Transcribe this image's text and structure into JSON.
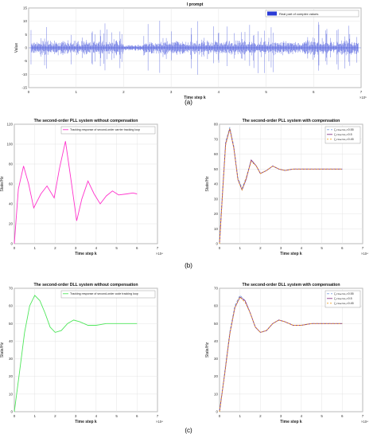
{
  "captions": {
    "a": "(a)",
    "b": "(b)",
    "c": "(c)"
  },
  "colors": {
    "noise": "#2a3bd6",
    "pll_nc": "#ff33cc",
    "dll_nc": "#4ee65a",
    "comp_a": "#7aa0e0",
    "comp_b": "#8a3a8a",
    "comp_c": "#f0a020",
    "comp_d": "#d04040"
  },
  "chart_data": [
    {
      "id": "a",
      "type": "line",
      "title": "l prompt",
      "xlabel": "Time step k",
      "ylabel": "Value",
      "x_exponent": "×10⁵",
      "xlim": [
        0,
        7
      ],
      "ylim": [
        -15,
        15
      ],
      "xticks": [
        "0",
        "1",
        "2",
        "3",
        "4",
        "5",
        "6",
        "7"
      ],
      "yticks": [
        "-15",
        "-10",
        "-5",
        "0",
        "5",
        "10",
        "15"
      ],
      "series": [
        {
          "name": "Real part of complex values",
          "baseline": 0,
          "typical_range": [
            -3,
            3
          ],
          "peak_range": [
            -11,
            11
          ],
          "quiet_segment_x": [
            2.0,
            2.4
          ]
        }
      ],
      "legend": "top-right",
      "grid": true
    },
    {
      "id": "b1",
      "type": "line",
      "title": "The second-order PLL system without compensation",
      "xlabel": "Time step k",
      "ylabel": "State/Hz",
      "x_exponent": "×10⁴",
      "xlim": [
        0,
        7
      ],
      "ylim": [
        0,
        120
      ],
      "xticks": [
        "0",
        "1",
        "2",
        "3",
        "4",
        "5",
        "6",
        "7"
      ],
      "yticks": [
        "0",
        "20",
        "40",
        "60",
        "80",
        "100",
        "120"
      ],
      "series": [
        {
          "name": "Tracking response of second-order carrier tracking loop",
          "x": [
            0,
            0.2,
            0.45,
            0.7,
            0.95,
            1.3,
            1.6,
            1.95,
            2.2,
            2.5,
            2.8,
            3.05,
            3.3,
            3.6,
            3.9,
            4.2,
            4.5,
            4.8,
            5.1,
            5.5,
            5.8,
            6.0
          ],
          "y": [
            0,
            55,
            78,
            60,
            36,
            50,
            58,
            46,
            75,
            103,
            60,
            23,
            45,
            63,
            50,
            40,
            48,
            53,
            49,
            50,
            51,
            50
          ]
        }
      ],
      "legend": "top-right",
      "grid": true
    },
    {
      "id": "b2",
      "type": "line",
      "title": "The second-order PLL system with compensation",
      "xlabel": "Time step k",
      "ylabel": "State/Hz",
      "x_exponent": "×10⁴",
      "xlim": [
        0,
        7
      ],
      "ylim": [
        0,
        80
      ],
      "xticks": [
        "0",
        "1",
        "2",
        "3",
        "4",
        "5",
        "6",
        "7"
      ],
      "yticks": [
        "0",
        "10",
        "20",
        "30",
        "40",
        "50",
        "60",
        "70",
        "80"
      ],
      "series": [
        {
          "name": "ζ₁=ωₙ=ω₀=0.55",
          "x": [
            0,
            0.15,
            0.3,
            0.5,
            0.7,
            0.9,
            1.1,
            1.3,
            1.55,
            1.8,
            2.0,
            2.3,
            2.6,
            2.9,
            3.2,
            3.6,
            4.0,
            4.5,
            5.0,
            5.5,
            6.0
          ],
          "y": [
            0,
            36,
            68,
            78,
            65,
            44,
            37,
            44,
            56,
            52,
            47,
            49,
            52,
            50,
            49,
            50,
            50,
            50,
            50,
            50,
            50
          ]
        },
        {
          "name": "ζ₁=ωₙ=ω₀=0.5",
          "x": [
            0,
            0.15,
            0.3,
            0.5,
            0.7,
            0.9,
            1.1,
            1.3,
            1.55,
            1.8,
            2.0,
            2.3,
            2.6,
            2.9,
            3.2,
            3.6,
            4.0,
            4.5,
            5.0,
            5.5,
            6.0
          ],
          "y": [
            0,
            35,
            67,
            77,
            64,
            43,
            36,
            43,
            56,
            52,
            47,
            49,
            52,
            50,
            49,
            50,
            50,
            50,
            50,
            50,
            50
          ]
        },
        {
          "name": "ζ₁=ωₙ=ω₀=0.45",
          "x": [
            0,
            0.15,
            0.3,
            0.5,
            0.7,
            0.9,
            1.1,
            1.3,
            1.55,
            1.8,
            2.0,
            2.3,
            2.6,
            2.9,
            3.2,
            3.6,
            4.0,
            4.5,
            5.0,
            5.5,
            6.0
          ],
          "y": [
            0,
            34,
            66,
            77,
            64,
            43,
            36,
            44,
            55,
            52,
            47,
            49,
            52,
            50,
            49,
            50,
            50,
            50,
            50,
            50,
            50
          ]
        }
      ],
      "legend": "top-right",
      "grid": true
    },
    {
      "id": "c1",
      "type": "line",
      "title": "The second-order DLL system without compensation",
      "xlabel": "Time step k",
      "ylabel": "State/Hz",
      "x_exponent": "×10⁴",
      "xlim": [
        0,
        7
      ],
      "ylim": [
        0,
        70
      ],
      "xticks": [
        "0",
        "1",
        "2",
        "3",
        "4",
        "5",
        "6",
        "7"
      ],
      "yticks": [
        "0",
        "10",
        "20",
        "30",
        "40",
        "50",
        "60",
        "70"
      ],
      "series": [
        {
          "name": "Tracking response of second-order code tracking loop",
          "x": [
            0,
            0.25,
            0.5,
            0.75,
            1.0,
            1.25,
            1.5,
            1.75,
            2.0,
            2.3,
            2.6,
            2.9,
            3.2,
            3.6,
            4.0,
            4.5,
            5.0,
            5.5,
            6.0
          ],
          "y": [
            0,
            22,
            45,
            60,
            66,
            63,
            56,
            48,
            45,
            46,
            50,
            52,
            51,
            49,
            49,
            50,
            50,
            50,
            50
          ]
        }
      ],
      "legend": "top-right",
      "grid": true
    },
    {
      "id": "c2",
      "type": "line",
      "title": "The second-order DLL system with compensation",
      "xlabel": "Time step k",
      "ylabel": "State/Hz",
      "x_exponent": "×10⁴",
      "xlim": [
        0,
        7
      ],
      "ylim": [
        0,
        70
      ],
      "xticks": [
        "0",
        "1",
        "2",
        "3",
        "4",
        "5",
        "6",
        "7"
      ],
      "yticks": [
        "0",
        "10",
        "20",
        "30",
        "40",
        "50",
        "60",
        "70"
      ],
      "series": [
        {
          "name": "ζ₁=ωₙ=ω₀=0.55",
          "x": [
            0,
            0.25,
            0.5,
            0.75,
            1.0,
            1.25,
            1.5,
            1.75,
            2.0,
            2.3,
            2.6,
            2.9,
            3.2,
            3.6,
            4.0,
            4.5,
            5.0,
            5.5,
            6.0
          ],
          "y": [
            0,
            22,
            45,
            60,
            66,
            63,
            56,
            48,
            45,
            46,
            50,
            52,
            51,
            49,
            49,
            50,
            50,
            50,
            50
          ]
        },
        {
          "name": "ζ₁=ωₙ=ω₀=0.5",
          "x": [
            0,
            0.25,
            0.5,
            0.75,
            1.0,
            1.25,
            1.5,
            1.75,
            2.0,
            2.3,
            2.6,
            2.9,
            3.2,
            3.6,
            4.0,
            4.5,
            5.0,
            5.5,
            6.0
          ],
          "y": [
            0,
            21,
            44,
            59,
            65,
            63,
            56,
            48,
            45,
            46,
            50,
            52,
            51,
            49,
            49,
            50,
            50,
            50,
            50
          ]
        },
        {
          "name": "ζ₁=ωₙ=ω₀=0.45",
          "x": [
            0,
            0.25,
            0.5,
            0.75,
            1.0,
            1.25,
            1.5,
            1.75,
            2.0,
            2.3,
            2.6,
            2.9,
            3.2,
            3.6,
            4.0,
            4.5,
            5.0,
            5.5,
            6.0
          ],
          "y": [
            0,
            21,
            44,
            59,
            65,
            62,
            56,
            48,
            45,
            46,
            50,
            52,
            51,
            49,
            49,
            50,
            50,
            50,
            50
          ]
        }
      ],
      "legend": "top-right",
      "grid": true
    }
  ]
}
